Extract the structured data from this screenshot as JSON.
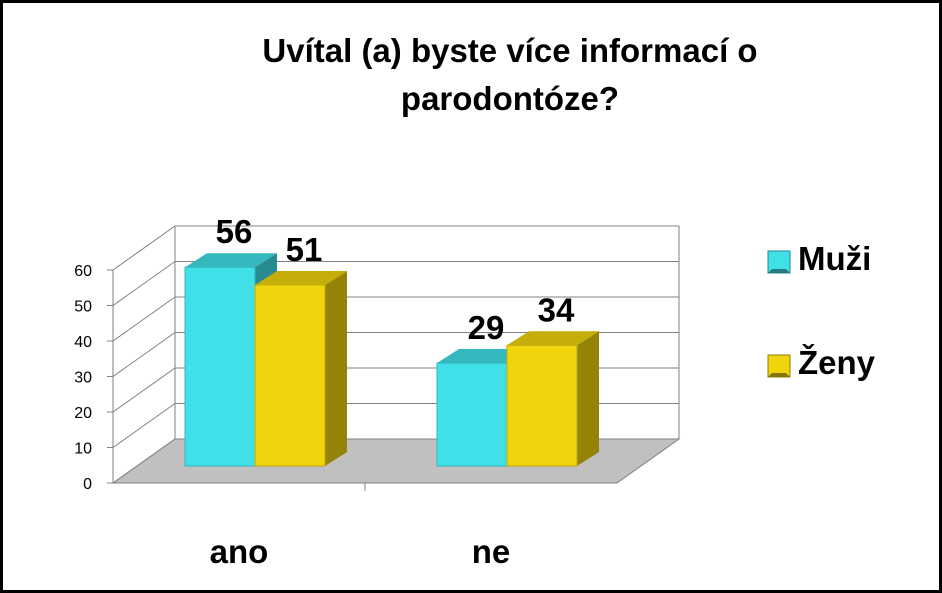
{
  "chart_data": {
    "type": "bar",
    "title": "Uvítal (a) byste více informací o parodontóze?",
    "title_lines": [
      "Uvítal (a) byste více informací o",
      "parodontóze?"
    ],
    "categories": [
      "ano",
      "ne"
    ],
    "series": [
      {
        "name": "Muži",
        "values": [
          56,
          29
        ],
        "color": "#40E0E8"
      },
      {
        "name": "Ženy",
        "values": [
          51,
          34
        ],
        "color": "#F0D40C"
      }
    ],
    "yticks": [
      0,
      10,
      20,
      30,
      40,
      50,
      60
    ],
    "ylim": [
      0,
      60
    ],
    "grid": true,
    "style": "3d",
    "legend_position": "right",
    "floor_color": "#C0C0C0"
  }
}
